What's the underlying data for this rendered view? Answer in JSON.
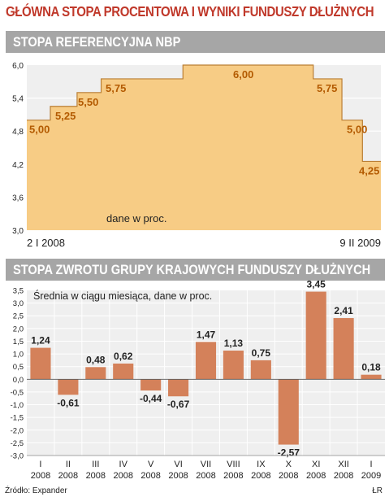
{
  "title": "GŁÓWNA STOPA PROCENTOWA I WYNIKI FUNDUSZY DŁUŻNYCH",
  "source": "Źródło: Expander",
  "credit": "ŁR",
  "colors": {
    "title": "#c0392b",
    "band": "#a6a6a6",
    "panel": "#efefef",
    "area": "#f7cc85",
    "area_line": "#ba7f35",
    "bar": "#d4815a",
    "bar_label": "#b35a00",
    "grid": "#ffffff"
  },
  "chart_data": [
    {
      "type": "area",
      "title": "STOPA REFERENCYJNA NBP",
      "annotation": "dane w proc.",
      "x_start_label": "2 I 2008",
      "x_end_label": "9 II 2009",
      "ylim": [
        3.0,
        6.0
      ],
      "yticks": [
        "6,0",
        "5,4",
        "4,8",
        "4,2",
        "3,6",
        "3,0"
      ],
      "steps": [
        {
          "value": 5.0,
          "label": "5,00"
        },
        {
          "value": 5.25,
          "label": "5,25"
        },
        {
          "value": 5.5,
          "label": "5,50"
        },
        {
          "value": 5.75,
          "label": "5,75"
        },
        {
          "value": 6.0,
          "label": "6,00"
        },
        {
          "value": 5.75,
          "label": "5,75"
        },
        {
          "value": 5.0,
          "label": "5,00"
        },
        {
          "value": 4.25,
          "label": "4,25"
        }
      ],
      "grid": true
    },
    {
      "type": "bar",
      "title": "STOPA ZWROTU GRUPY KRAJOWYCH FUNDUSZY DŁUŻNYCH",
      "subtitle": "Średnia w ciągu miesiąca, dane w proc.",
      "ylim": [
        -3.0,
        3.5
      ],
      "yticks": [
        "3,5",
        "3,0",
        "2,5",
        "2,0",
        "1,5",
        "1,0",
        "0,5",
        "0,0",
        "-0,5",
        "-1,0",
        "-1,5",
        "-2,0",
        "-2,5",
        "-3,0"
      ],
      "categories": [
        {
          "month": "I",
          "year": "2008"
        },
        {
          "month": "II",
          "year": "2008"
        },
        {
          "month": "III",
          "year": "2008"
        },
        {
          "month": "IV",
          "year": "2008"
        },
        {
          "month": "V",
          "year": "2008"
        },
        {
          "month": "VI",
          "year": "2008"
        },
        {
          "month": "VII",
          "year": "2008"
        },
        {
          "month": "VIII",
          "year": "2008"
        },
        {
          "month": "IX",
          "year": "2008"
        },
        {
          "month": "X",
          "year": "2008"
        },
        {
          "month": "XI",
          "year": "2008"
        },
        {
          "month": "XII",
          "year": "2008"
        },
        {
          "month": "I",
          "year": "2009"
        }
      ],
      "values": [
        1.24,
        -0.61,
        0.48,
        0.62,
        -0.44,
        -0.67,
        1.47,
        1.13,
        0.75,
        -2.57,
        3.45,
        2.41,
        0.18
      ],
      "labels": [
        "1,24",
        "-0,61",
        "0,48",
        "0,62",
        "-0,44",
        "-0,67",
        "1,47",
        "1,13",
        "0,75",
        "-2,57",
        "3,45",
        "2,41",
        "0,18"
      ],
      "grid": true
    }
  ]
}
